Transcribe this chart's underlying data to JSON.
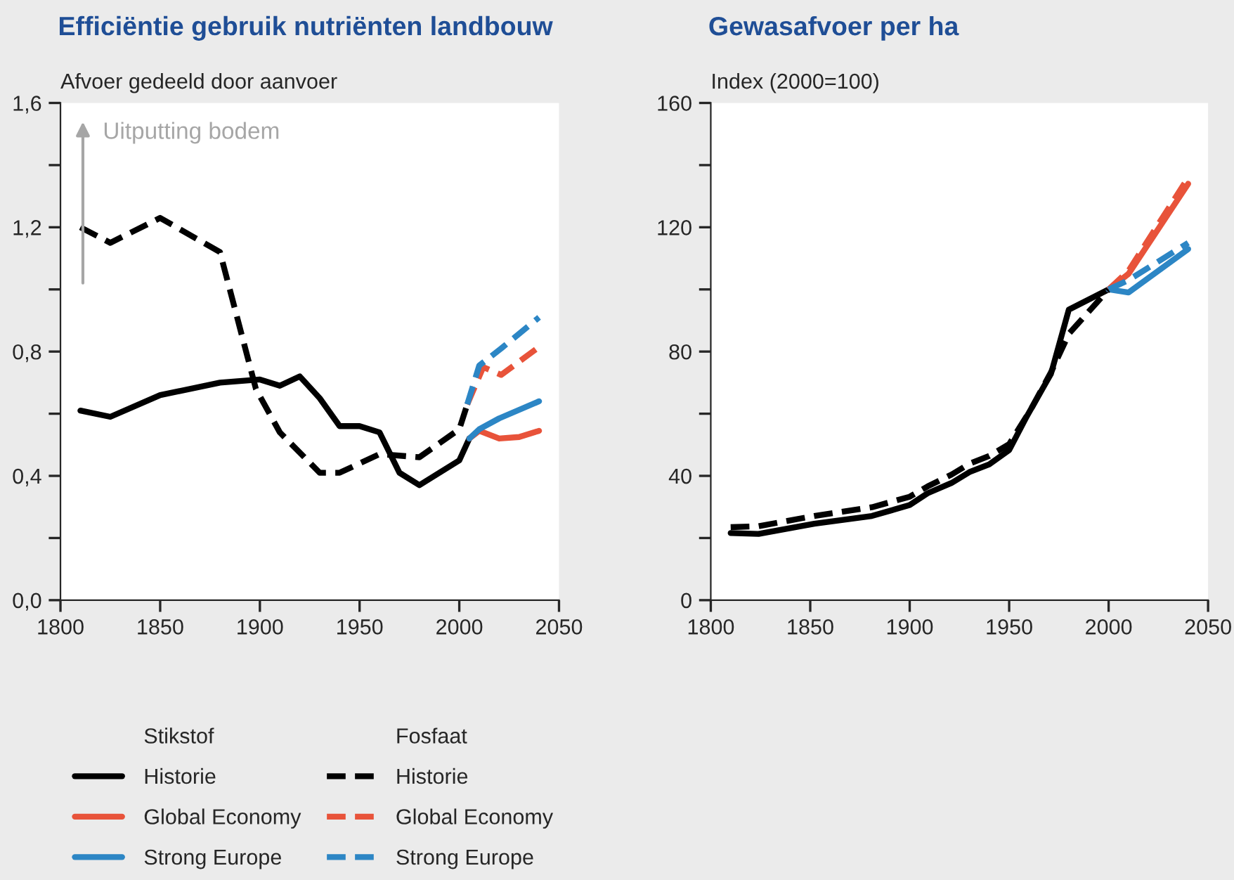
{
  "chart_data": [
    {
      "type": "line",
      "title": "Efficiëntie gebruik nutriënten landbouw",
      "ylabel": "Afvoer gedeeld door aanvoer",
      "annotations": [
        "Uitputting bodem",
        "Stikstof",
        "Fosfaat"
      ],
      "xlim": [
        1800,
        2050
      ],
      "xticks": [
        1800,
        1850,
        1900,
        1950,
        2000,
        2050
      ],
      "ylim": [
        0,
        1.6
      ],
      "yticks": [
        {
          "value": 0,
          "label": "0,0"
        },
        {
          "value": 0.2,
          "label": null
        },
        {
          "value": 0.4,
          "label": "0,4"
        },
        {
          "value": 0.6,
          "label": null
        },
        {
          "value": 0.8,
          "label": "0,8"
        },
        {
          "value": 1.0,
          "label": null
        },
        {
          "value": 1.2,
          "label": "1,2"
        },
        {
          "value": 1.4,
          "label": null
        },
        {
          "value": 1.6,
          "label": "1,6"
        }
      ],
      "grid": false,
      "legend": "bottom",
      "series": [
        {
          "name": "Historie",
          "color": "#000000",
          "line_style": "solid",
          "x": [
            1810,
            1825,
            1850,
            1880,
            1900,
            1910,
            1920,
            1930,
            1940,
            1950,
            1960,
            1970,
            1980,
            2000,
            2005
          ],
          "values": [
            0.61,
            0.59,
            0.66,
            0.7,
            0.71,
            0.69,
            0.72,
            0.65,
            0.56,
            0.56,
            0.54,
            0.41,
            0.37,
            0.45,
            0.52
          ]
        },
        {
          "name": "Global Economy",
          "color": "#e8533a",
          "line_style": "solid",
          "x": [
            2005,
            2010,
            2020,
            2030,
            2040
          ],
          "values": [
            0.52,
            0.545,
            0.52,
            0.525,
            0.545
          ]
        },
        {
          "name": "Strong Europe",
          "color": "#2c86c5",
          "line_style": "solid",
          "x": [
            2005,
            2010,
            2020,
            2040
          ],
          "values": [
            0.52,
            0.55,
            0.585,
            0.64
          ]
        },
        {
          "name": "Historie",
          "color": "#000000",
          "line_style": "dashed",
          "x": [
            1810,
            1825,
            1850,
            1880,
            1898,
            1910,
            1930,
            1940,
            1960,
            1980,
            2000,
            2004
          ],
          "values": [
            1.2,
            1.15,
            1.23,
            1.12,
            0.68,
            0.54,
            0.41,
            0.41,
            0.47,
            0.46,
            0.55,
            0.63
          ]
        },
        {
          "name": "Global Economy",
          "color": "#e8533a",
          "line_style": "dashed",
          "x": [
            2004,
            2012,
            2021,
            2040
          ],
          "values": [
            0.63,
            0.75,
            0.725,
            0.815
          ]
        },
        {
          "name": "Strong Europe",
          "color": "#2c86c5",
          "line_style": "dashed",
          "x": [
            2004,
            2010,
            2021,
            2040
          ],
          "values": [
            0.63,
            0.755,
            0.81,
            0.91
          ]
        }
      ]
    },
    {
      "type": "line",
      "title": "Gewasafvoer per ha",
      "ylabel": "Index (2000=100)",
      "xlim": [
        1800,
        2050
      ],
      "xticks": [
        1800,
        1850,
        1900,
        1950,
        2000,
        2050
      ],
      "ylim": [
        0,
        160
      ],
      "yticks": [
        0,
        {
          "value": 20,
          "label": null
        },
        40,
        {
          "value": 60,
          "label": null
        },
        80,
        {
          "value": 100,
          "label": null
        },
        120,
        {
          "value": 140,
          "label": null
        },
        160
      ],
      "grid": false,
      "legend": false,
      "series": [
        {
          "color": "#000000",
          "line_style": "solid",
          "x": [
            1810,
            1824,
            1852,
            1881,
            1900,
            1909,
            1921,
            1930,
            1940,
            1950,
            1959,
            1971,
            1980,
            2000
          ],
          "values": [
            21.6,
            21.3,
            24.6,
            27.1,
            30.6,
            34.4,
            37.7,
            41.2,
            43.7,
            48.3,
            59.3,
            72.8,
            93.5,
            100
          ]
        },
        {
          "color": "#e8533a",
          "line_style": "solid",
          "x": [
            2000,
            2010,
            2040
          ],
          "values": [
            100,
            105,
            134
          ]
        },
        {
          "color": "#2c86c5",
          "line_style": "solid",
          "x": [
            2000,
            2010,
            2040
          ],
          "values": [
            100,
            99,
            113
          ]
        },
        {
          "color": "#000000",
          "line_style": "dashed",
          "x": [
            1810,
            1824,
            1852,
            1881,
            1900,
            1909,
            1921,
            1930,
            1940,
            1950,
            1961,
            1971,
            1980,
            2000
          ],
          "values": [
            23.5,
            23.8,
            27.1,
            29.9,
            33.3,
            36.6,
            40.4,
            43.9,
            46.4,
            50.2,
            61.5,
            73.3,
            85.7,
            100
          ]
        },
        {
          "color": "#e8533a",
          "line_style": "dashed",
          "x": [
            2000,
            2010,
            2040
          ],
          "values": [
            100,
            106,
            136
          ]
        },
        {
          "color": "#2c86c5",
          "line_style": "dashed",
          "x": [
            2000,
            2010,
            2040
          ],
          "values": [
            100,
            103,
            115
          ]
        }
      ]
    }
  ]
}
